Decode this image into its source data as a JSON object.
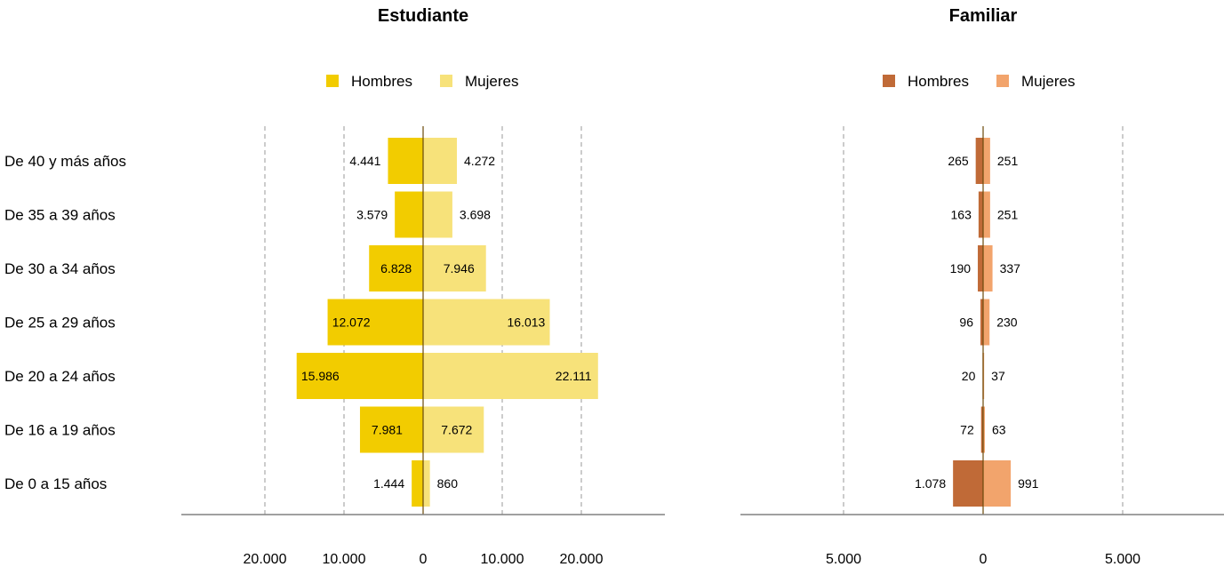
{
  "categories": [
    "De 40 y más años",
    "De 35 a 39 años",
    "De 30 a 34 años",
    "De 25 a 29 años",
    "De 20 a 24 años",
    "De 16 a 19 años",
    "De 0 a 15 años"
  ],
  "chart_data": [
    {
      "type": "bar",
      "orientation": "horizontal-pyramid",
      "title": "Estudiante",
      "categories": [
        "De 40 y más años",
        "De 35 a 39 años",
        "De 30 a 34 años",
        "De 25 a 29 años",
        "De 20 a 24 años",
        "De 16 a 19 años",
        "De 0 a 15 años"
      ],
      "series": [
        {
          "name": "Hombres",
          "values": [
            4441,
            3579,
            6828,
            12072,
            15986,
            7981,
            1444
          ],
          "labels": [
            "4.441",
            "3.579",
            "6.828",
            "12.072",
            "15.986",
            "7.981",
            "1.444"
          ],
          "color": "#f2cc00",
          "side": "left"
        },
        {
          "name": "Mujeres",
          "values": [
            4272,
            3698,
            7946,
            16013,
            22111,
            7672,
            860
          ],
          "labels": [
            "4.272",
            "3.698",
            "7.946",
            "16.013",
            "22.111",
            "7.672",
            "860"
          ],
          "color": "#f7e27a",
          "side": "right"
        }
      ],
      "xlim": [
        -24000,
        24000
      ],
      "ticks": [
        -20000,
        -10000,
        0,
        10000,
        20000
      ],
      "tick_labels": [
        "20.000",
        "10.000",
        "0",
        "10.000",
        "20.000"
      ],
      "gridlines": "dashed",
      "legend_position": "top"
    },
    {
      "type": "bar",
      "orientation": "horizontal-pyramid",
      "title": "Familiar",
      "categories": [
        "De 40 y más años",
        "De 35 a 39 años",
        "De 30 a 34 años",
        "De 25 a 29 años",
        "De 20 a 24 años",
        "De 16 a 19 años",
        "De 0 a 15 años"
      ],
      "series": [
        {
          "name": "Hombres",
          "values": [
            265,
            163,
            190,
            96,
            20,
            72,
            1078
          ],
          "labels": [
            "265",
            "163",
            "190",
            "96",
            "20",
            "72",
            "1.078"
          ],
          "color": "#c06a37",
          "side": "left"
        },
        {
          "name": "Mujeres",
          "values": [
            251,
            251,
            337,
            230,
            37,
            63,
            991
          ],
          "labels": [
            "251",
            "251",
            "337",
            "230",
            "37",
            "63",
            "991"
          ],
          "color": "#f2a46c",
          "side": "right"
        }
      ],
      "xlim": [
        -8500,
        8500
      ],
      "ticks": [
        -5000,
        0,
        5000
      ],
      "tick_labels": [
        "5.000",
        "0",
        "5.000"
      ],
      "gridlines": "dashed",
      "legend_position": "top"
    }
  ]
}
